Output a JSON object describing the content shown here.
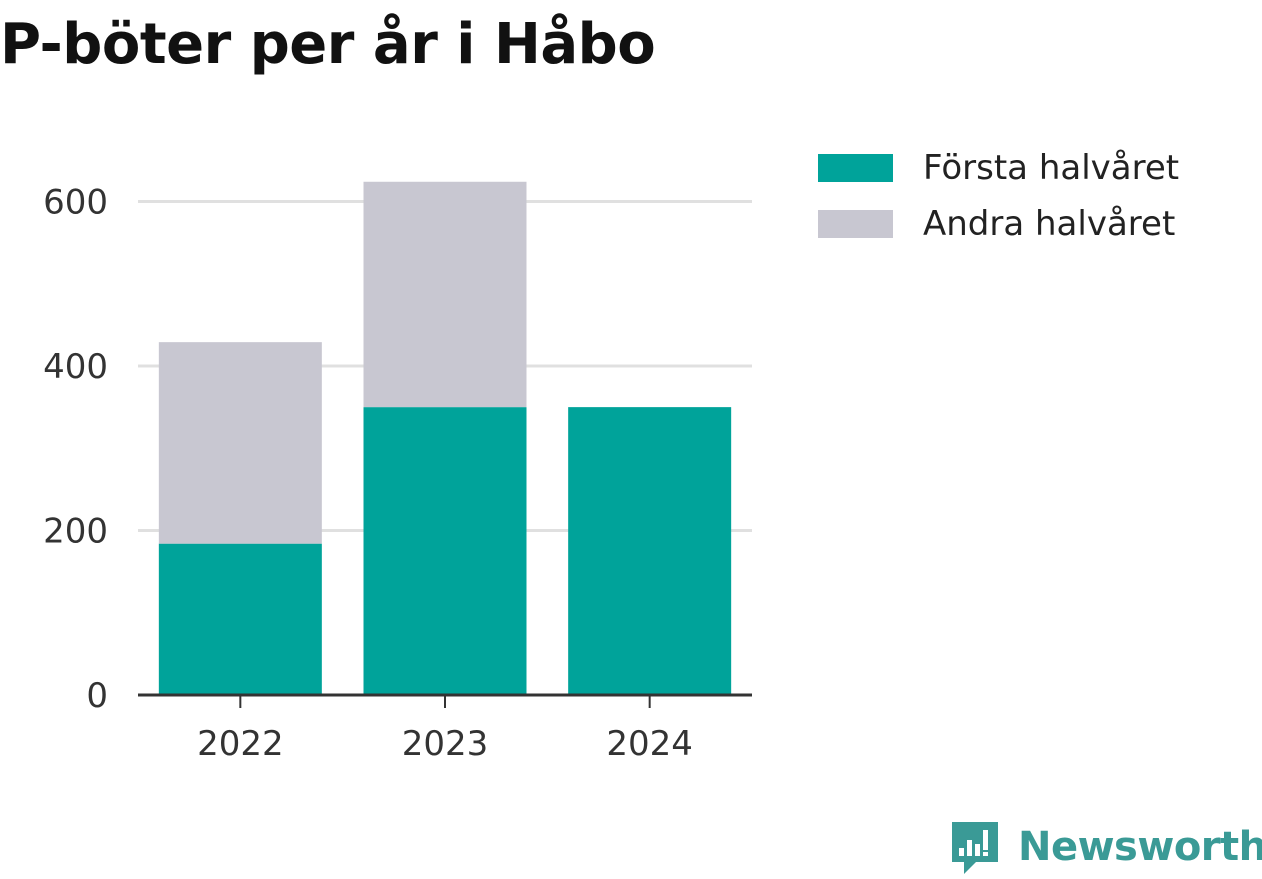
{
  "title": "P-böter per år i Håbo",
  "brand": {
    "name": "Newsworthy",
    "icon": "newsworthy-logo-icon",
    "color": "#3a9a96"
  },
  "colors": {
    "forsta": "#00a39a",
    "andra": "#c8c7d1",
    "grid": "#e0e0e0",
    "axis": "#333333"
  },
  "legend": [
    {
      "label": "Första halvåret",
      "color": "#00a39a"
    },
    {
      "label": "Andra halvåret",
      "color": "#c8c7d1"
    }
  ],
  "chart_data": {
    "type": "bar",
    "stacked": true,
    "title": "P-böter per år i Håbo",
    "categories": [
      "2022",
      "2023",
      "2024"
    ],
    "series": [
      {
        "name": "Första halvåret",
        "values": [
          184,
          350,
          350
        ]
      },
      {
        "name": "Andra halvåret",
        "values": [
          245,
          274,
          0
        ]
      }
    ],
    "y_ticks": [
      "0",
      "200",
      "400",
      "600"
    ],
    "ylim": [
      0,
      640
    ],
    "grid": true,
    "legend_position": "right"
  }
}
